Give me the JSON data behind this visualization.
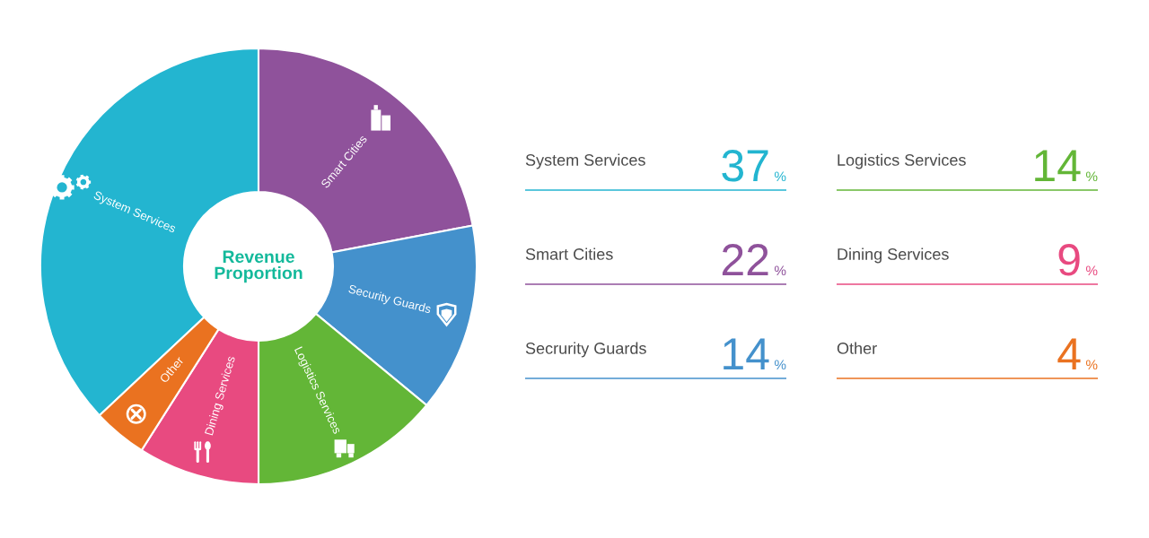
{
  "chart_data": [
    {
      "type": "donut",
      "title": "Revenue\nProportion",
      "categories": [
        "System Services",
        "Smart Cities",
        "Security Guards",
        "Logistics Services",
        "Dining Services",
        "Other"
      ],
      "values": [
        37,
        22,
        14,
        14,
        9,
        4
      ],
      "colors": [
        "#23b5d0",
        "#8f529b",
        "#4491cc",
        "#63b637",
        "#e84a80",
        "#ea7220"
      ]
    },
    {
      "type": "other",
      "annotations": [
        "System Services",
        "37%",
        "Smart Cities",
        "22%",
        "Secrurity Guards",
        "14%",
        "Logistics Services",
        "14%",
        "Dining Services",
        "9%",
        "Other",
        "4%"
      ]
    }
  ]
}
